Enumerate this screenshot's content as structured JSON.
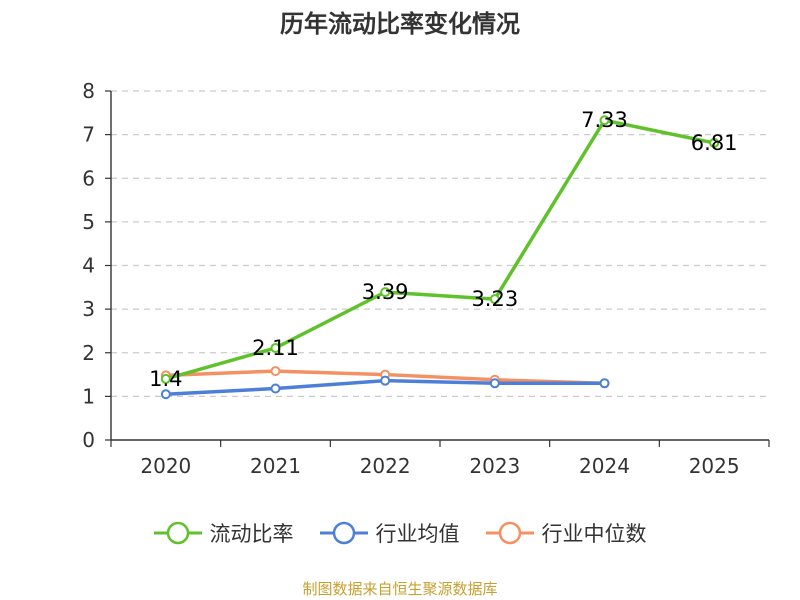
{
  "chart_data": {
    "type": "line",
    "title": "历年流动比率变化情况",
    "categories": [
      "2020",
      "2021",
      "2022",
      "2023",
      "2024",
      "2025"
    ],
    "ylim": [
      0,
      8
    ],
    "yticks": [
      0,
      1,
      2,
      3,
      4,
      5,
      6,
      7,
      8
    ],
    "grid": true,
    "legend_position": "bottom",
    "series": [
      {
        "name": "流动比率",
        "color": "#5fc22b",
        "values": [
          1.4,
          2.11,
          3.39,
          3.23,
          7.33,
          6.81
        ],
        "labels": [
          "1.4",
          "2.11",
          "3.39",
          "3.23",
          "7.33",
          "6.81"
        ]
      },
      {
        "name": "行业均值",
        "color": "#4e7fd8",
        "values": [
          1.05,
          1.18,
          1.36,
          1.3,
          1.3,
          null
        ]
      },
      {
        "name": "行业中位数",
        "color": "#f39163",
        "values": [
          1.48,
          1.58,
          1.5,
          1.38,
          1.3,
          null
        ]
      }
    ],
    "source": "制图数据来自恒生聚源数据库"
  }
}
